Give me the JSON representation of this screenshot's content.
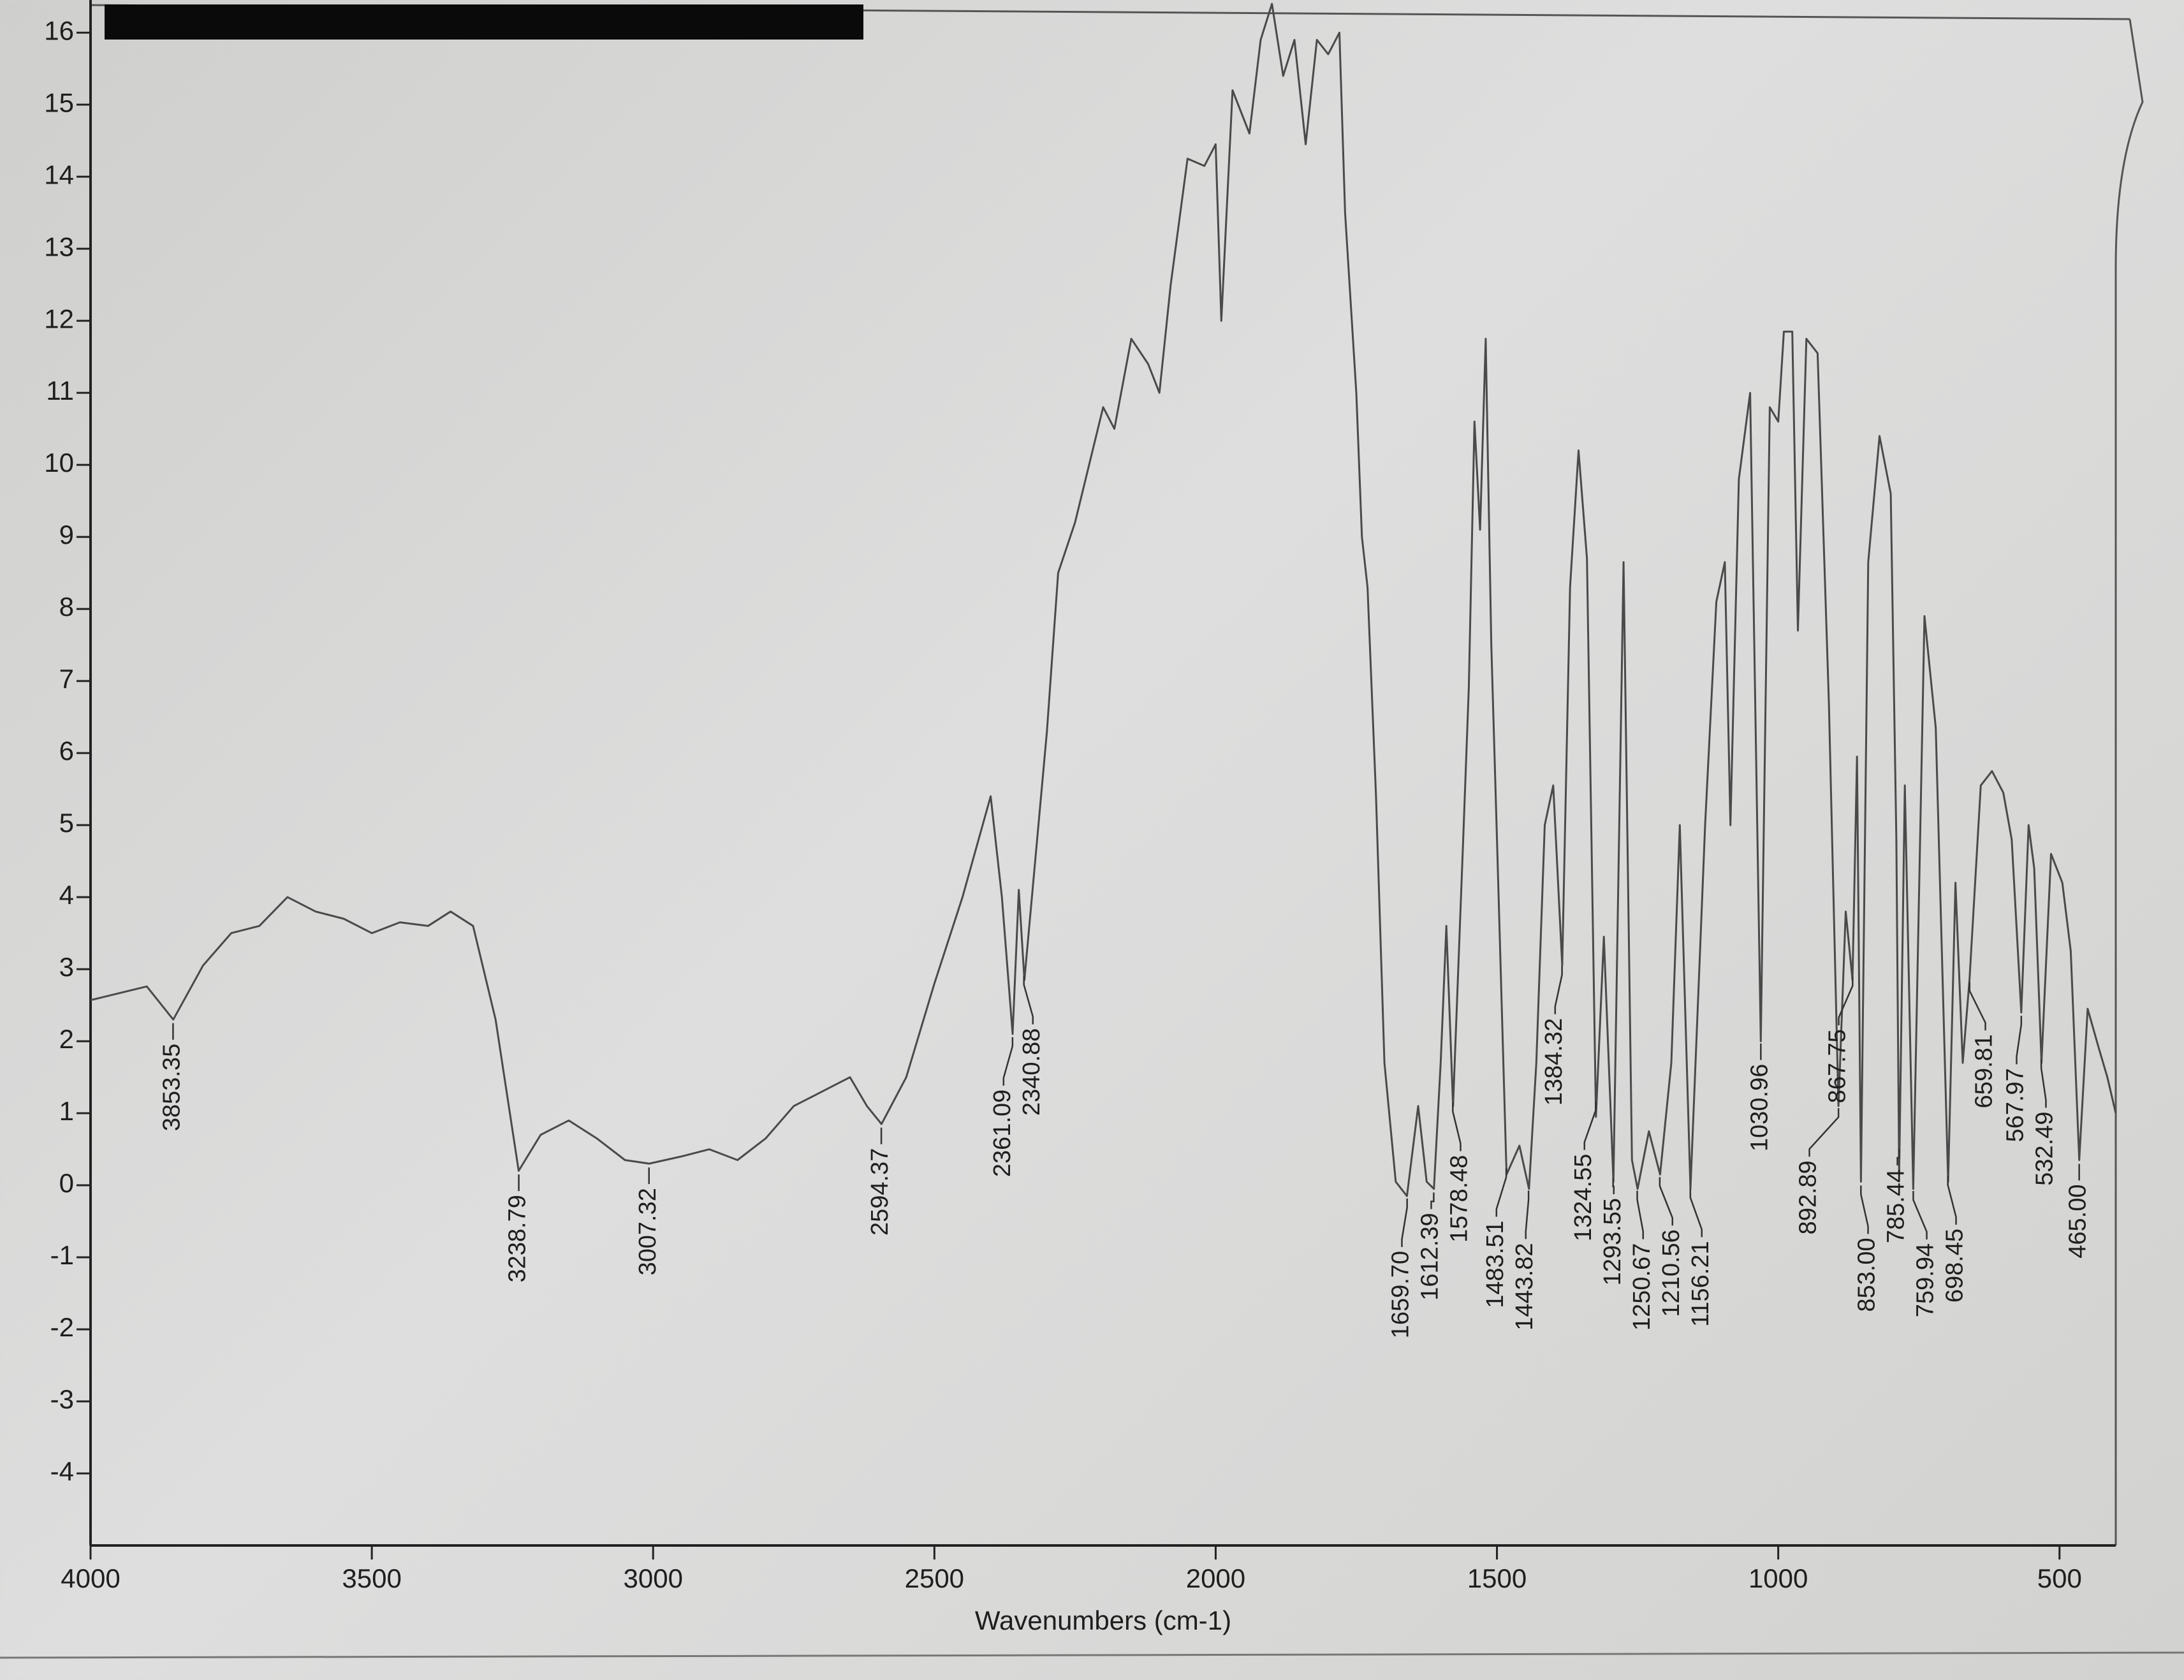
{
  "chart_data": {
    "type": "line",
    "xlabel": "Wavenumbers (cm-1)",
    "xlim": [
      4000,
      400
    ],
    "ylim": [
      -5,
      16.4
    ],
    "xticks": [
      4000,
      3500,
      3000,
      2500,
      2000,
      1500,
      1000,
      500
    ],
    "yticks": [
      -4,
      -3,
      -2,
      -1,
      0,
      1,
      2,
      3,
      4,
      5,
      6,
      7,
      8,
      9,
      10,
      11,
      12,
      13,
      14,
      15,
      16
    ],
    "color": "#4a4a4a",
    "x": [
      4000,
      3900,
      3853,
      3800,
      3750,
      3700,
      3650,
      3600,
      3550,
      3500,
      3450,
      3400,
      3360,
      3320,
      3280,
      3239,
      3200,
      3150,
      3100,
      3050,
      3007,
      2950,
      2900,
      2850,
      2800,
      2750,
      2700,
      2650,
      2620,
      2594,
      2550,
      2500,
      2450,
      2400,
      2380,
      2361,
      2350,
      2340,
      2300,
      2280,
      2250,
      2200,
      2180,
      2150,
      2120,
      2100,
      2080,
      2050,
      2020,
      2000,
      1990,
      1970,
      1940,
      1920,
      1900,
      1880,
      1860,
      1840,
      1820,
      1800,
      1780,
      1770,
      1750,
      1740,
      1730,
      1715,
      1700,
      1680,
      1660,
      1640,
      1625,
      1612,
      1600,
      1590,
      1578,
      1560,
      1550,
      1540,
      1530,
      1520,
      1510,
      1500,
      1483,
      1460,
      1443,
      1430,
      1415,
      1400,
      1384,
      1370,
      1355,
      1340,
      1324,
      1310,
      1293,
      1275,
      1260,
      1250,
      1230,
      1210,
      1190,
      1175,
      1156,
      1130,
      1110,
      1095,
      1085,
      1070,
      1050,
      1031,
      1015,
      1000,
      990,
      975,
      965,
      950,
      930,
      910,
      893,
      880,
      868,
      860,
      853,
      840,
      820,
      800,
      790,
      785,
      775,
      760,
      740,
      720,
      698,
      685,
      672,
      660,
      640,
      620,
      600,
      585,
      568,
      555,
      545,
      532,
      515,
      495,
      480,
      465,
      450,
      430,
      415,
      400
    ],
    "values": [
      2.57,
      2.76,
      2.3,
      3.05,
      3.5,
      3.6,
      4.0,
      3.8,
      3.7,
      3.5,
      3.65,
      3.6,
      3.8,
      3.6,
      2.3,
      0.2,
      0.7,
      0.9,
      0.65,
      0.35,
      0.3,
      0.4,
      0.5,
      0.35,
      0.65,
      1.1,
      1.3,
      1.5,
      1.1,
      0.85,
      1.5,
      2.8,
      4.0,
      5.4,
      4.0,
      2.1,
      4.1,
      2.85,
      6.3,
      8.5,
      9.2,
      10.8,
      10.5,
      11.75,
      11.4,
      11.0,
      12.5,
      14.25,
      14.15,
      14.45,
      12.0,
      15.2,
      14.6,
      15.9,
      16.4,
      15.4,
      15.9,
      14.45,
      15.9,
      15.7,
      16.0,
      13.5,
      11.0,
      9.0,
      8.3,
      5.4,
      1.7,
      0.05,
      -0.15,
      1.1,
      0.05,
      -0.05,
      1.7,
      3.6,
      1.1,
      4.8,
      6.9,
      10.6,
      9.1,
      11.75,
      7.5,
      4.8,
      0.15,
      0.55,
      -0.05,
      1.7,
      5.0,
      5.55,
      3.05,
      8.3,
      10.2,
      8.7,
      0.95,
      3.45,
      0.05,
      8.65,
      0.35,
      -0.05,
      0.75,
      0.15,
      1.7,
      5.0,
      -0.05,
      5.0,
      8.1,
      8.65,
      5.0,
      9.8,
      11.0,
      2.0,
      10.8,
      10.6,
      11.85,
      11.85,
      7.7,
      11.75,
      11.55,
      6.7,
      1.1,
      3.8,
      2.85,
      5.95,
      0.05,
      8.65,
      10.4,
      9.6,
      4.8,
      0.15,
      5.55,
      -0.05,
      7.9,
      6.35,
      0.05,
      4.2,
      1.7,
      2.85,
      5.55,
      5.75,
      5.45,
      4.8,
      2.4,
      5.0,
      4.4,
      1.7,
      4.6,
      4.2,
      3.25,
      0.35,
      2.45,
      1.9,
      1.5,
      1.0
    ],
    "peaks": [
      3853.35,
      3238.79,
      3007.32,
      2594.37,
      2361.09,
      2340.88,
      {
        "value": 1659.7,
        "label": "1659.70"
      },
      1612.39,
      1578.48,
      1483.51,
      1443.82,
      1384.32,
      1324.55,
      1293.55,
      1250.67,
      1210.56,
      1156.21,
      1030.96,
      892.89,
      867.75,
      {
        "value": 853,
        "label": "853.00"
      },
      785.44,
      759.94,
      698.45,
      659.81,
      567.97,
      532.49,
      {
        "value": 465,
        "label": "465.00"
      }
    ]
  }
}
